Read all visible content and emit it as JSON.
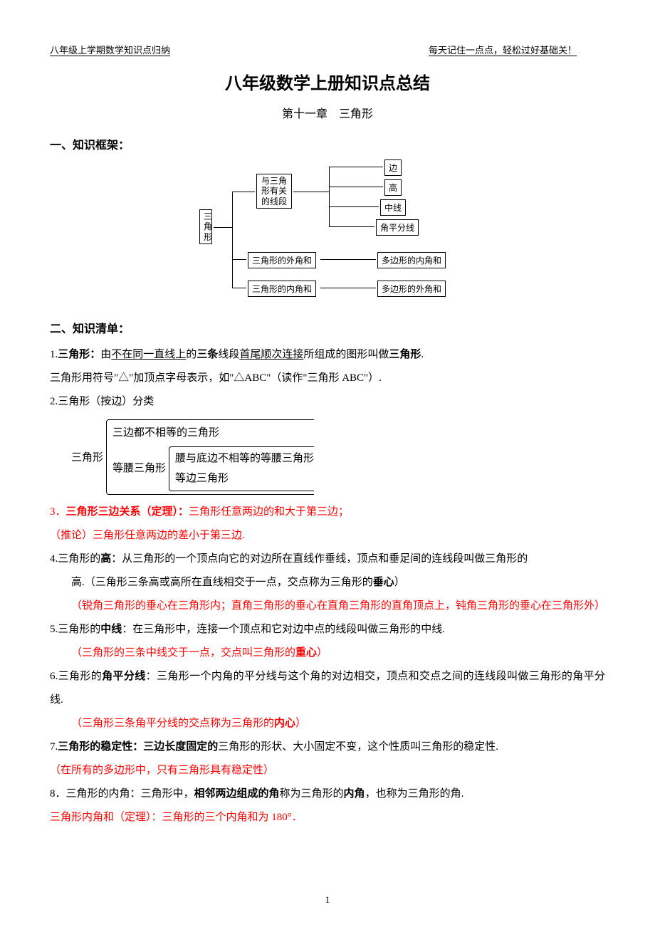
{
  "header": {
    "left": "八年级上学期数学知识点归纳",
    "right": "每天记住一点点，轻松过好基础关！"
  },
  "title": "八年级数学上册知识点总结",
  "subtitle": "第十一章　三角形",
  "section1": "一、知识框架：",
  "section2": "二、知识清单：",
  "diagram": {
    "root": "三\n角\n形",
    "branch1": "与三角\n形有关\n的线段",
    "leaf1": "边",
    "leaf2": "高",
    "leaf3": "中线",
    "leaf4": "角平分线",
    "branch2": "三角形的外角和",
    "branch2r": "多边形的内角和",
    "branch3": "三角形的内角和",
    "branch3r": "多边形的外角和"
  },
  "p1_a": "1.",
  "p1_b": "三角形：",
  "p1_c": "由",
  "p1_d": "不在同一直线上",
  "p1_e": "的",
  "p1_f": "三条",
  "p1_g": "线段",
  "p1_h": "首尾顺次连接",
  "p1_i": "所组成的图形叫做",
  "p1_j": "三角形",
  "p1_k": ".",
  "p2": "三角形用符号\"△\"加顶点字母表示，如\"△ABC\"（读作\"三角形 ABC\"）.",
  "p3": "2.三角形（按边）分类",
  "cls_root": "三角形",
  "cls_1": "三边都不相等的三角形",
  "cls_2": "等腰三角形",
  "cls_2a": "腰与底边不相等的等腰三角形",
  "cls_2b": "等边三角形",
  "p4_a": "3．",
  "p4_b": "三角形三边关系（定理）：",
  "p4_c": "三角形任意两边的和大于第三边；",
  "p5": "（推论）三角形任意两边的差小于第三边.",
  "p6_a": "4.三角形的",
  "p6_b": "高",
  "p6_c": "：从三角形的一个顶点向它的对边所在直线作垂线，顶点和垂足间的连线段叫做三角形的",
  "p6_d": "高.（三角形三条高或高所在直线相交于一点，交点称为三角形的",
  "p6_e": "垂心",
  "p6_f": "）",
  "p7": "（锐角三角形的垂心在三角形内；直角三角形的垂心在直角三角形的直角顶点上，钝角三角形的垂心在三角形外）",
  "p8_a": "5.三角形的",
  "p8_b": "中线",
  "p8_c": "：在三角形中，连接一个顶点和它对边中点的线段叫做三角形的中线.",
  "p9_a": "（三角形的三条中线交于一点，交点叫三角形的",
  "p9_b": "重心",
  "p9_c": "）",
  "p10_a": "6.三角形的",
  "p10_b": "角平分线",
  "p10_c": "：三角形一个内角的平分线与这个角的对边相交，顶点和交点之间的连线段叫做三角形的角平分线.",
  "p11_a": "（三角形三条角平分线的交点称为三角形的",
  "p11_b": "内心",
  "p11_c": "）",
  "p12_a": "7.",
  "p12_b": "三角形的稳定性：三边长度固定的",
  "p12_c": "三角形的形状、大小固定不变，这个性质叫三角形的稳定性.",
  "p13": "（在所有的多边形中，只有三角形具有稳定性）",
  "p14_a": "8．三角形的内角：三角形中，",
  "p14_b": "相邻两边组成的角",
  "p14_c": "称为三角形的",
  "p14_d": "内角",
  "p14_e": "，也称为三角形的角.",
  "p15": "三角形内角和（定理）：三角形的三个内角和为 180°．",
  "pagenum": "1",
  "colors": {
    "text": "#000000",
    "red": "#ff0000",
    "bg": "#ffffff"
  }
}
